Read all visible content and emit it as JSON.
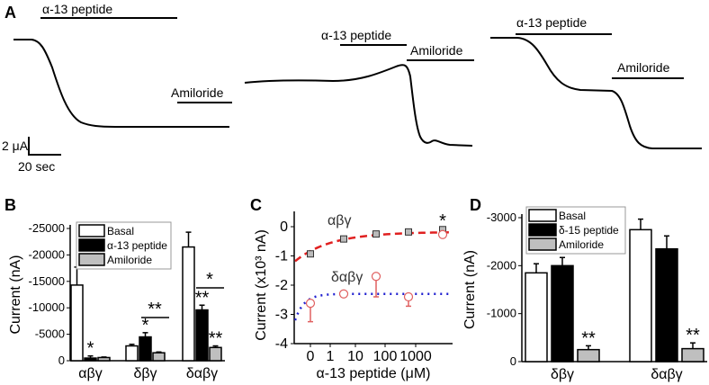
{
  "panel_labels": {
    "a": "A",
    "b": "B",
    "c": "C",
    "d": "D"
  },
  "panel_a": {
    "peptide_label": "α-13 peptide",
    "amiloride_label": "Amiloride",
    "scale_current": "2 μA",
    "scale_time": "20 sec"
  },
  "chart_data": [
    {
      "panel": "B",
      "type": "bar",
      "ylabel": "Current (nA)",
      "ylim": [
        0,
        -25000
      ],
      "yticks": [
        "0",
        "-5000",
        "-10000",
        "-15000",
        "-20000",
        "-25000"
      ],
      "categories": [
        "αβγ",
        "δβγ",
        "δαβγ"
      ],
      "legend": "top-left",
      "series": [
        {
          "name": "Basal",
          "color": "#ffffff",
          "values": [
            -14300,
            -2800,
            -21500
          ],
          "errors": [
            3400,
            300,
            2800
          ],
          "stars": [
            "",
            "",
            ""
          ]
        },
        {
          "name": "α-13 peptide",
          "color": "#000000",
          "values": [
            -500,
            -4500,
            -9600
          ],
          "errors": [
            400,
            800,
            900
          ],
          "stars": [
            "*",
            "*",
            "**"
          ]
        },
        {
          "name": "Amiloride",
          "color": "#bfbfbf",
          "values": [
            -600,
            -1500,
            -2500
          ],
          "errors": [
            100,
            150,
            300
          ],
          "stars": [
            "",
            "",
            "**"
          ]
        }
      ],
      "bracket_stars": [
        "**",
        "*"
      ]
    },
    {
      "panel": "C",
      "type": "scatter",
      "ylabel": "Current (x10³ nA)",
      "xlabel": "α-13 peptide (μM)",
      "ylim": [
        -4,
        0
      ],
      "yticks": [
        "0",
        "-1",
        "-2",
        "-3",
        "-4"
      ],
      "xticks": [
        "0",
        "1",
        "10",
        "100",
        "1000"
      ],
      "x": [
        0,
        3,
        30,
        300,
        3000
      ],
      "series": [
        {
          "name": "αβγ",
          "color": "#e02020",
          "values": [
            -0.93,
            -0.42,
            -0.25,
            -0.18,
            -0.1
          ],
          "errors": [
            0.05,
            0.05,
            0.05,
            0.05,
            0.06
          ],
          "fit": "dashed"
        },
        {
          "name": "δαβγ",
          "color": "#e06060",
          "values": [
            -2.62,
            -2.3,
            -1.7,
            -2.4,
            null
          ],
          "errors": [
            0.63,
            0.08,
            0.7,
            0.32,
            null
          ],
          "fit": "dotted"
        }
      ],
      "extra_point": {
        "x": 3000,
        "value": -0.27
      },
      "annotation": "*"
    },
    {
      "panel": "D",
      "type": "bar",
      "ylabel": "Current (nA)",
      "ylim": [
        0,
        -3000
      ],
      "yticks": [
        "0",
        "-1000",
        "-2000",
        "-3000"
      ],
      "categories": [
        "δβγ",
        "δαβγ"
      ],
      "legend": "top-left",
      "series": [
        {
          "name": "Basal",
          "color": "#ffffff",
          "values": [
            -1850,
            -2750
          ],
          "errors": [
            190,
            220
          ],
          "stars": [
            "",
            ""
          ]
        },
        {
          "name": "δ-15 peptide",
          "color": "#000000",
          "values": [
            -2000,
            -2350
          ],
          "errors": [
            170,
            270
          ],
          "stars": [
            "",
            ""
          ]
        },
        {
          "name": "Amiloride",
          "color": "#bfbfbf",
          "values": [
            -250,
            -270
          ],
          "errors": [
            80,
            120
          ],
          "stars": [
            "**",
            "**"
          ]
        }
      ]
    }
  ]
}
